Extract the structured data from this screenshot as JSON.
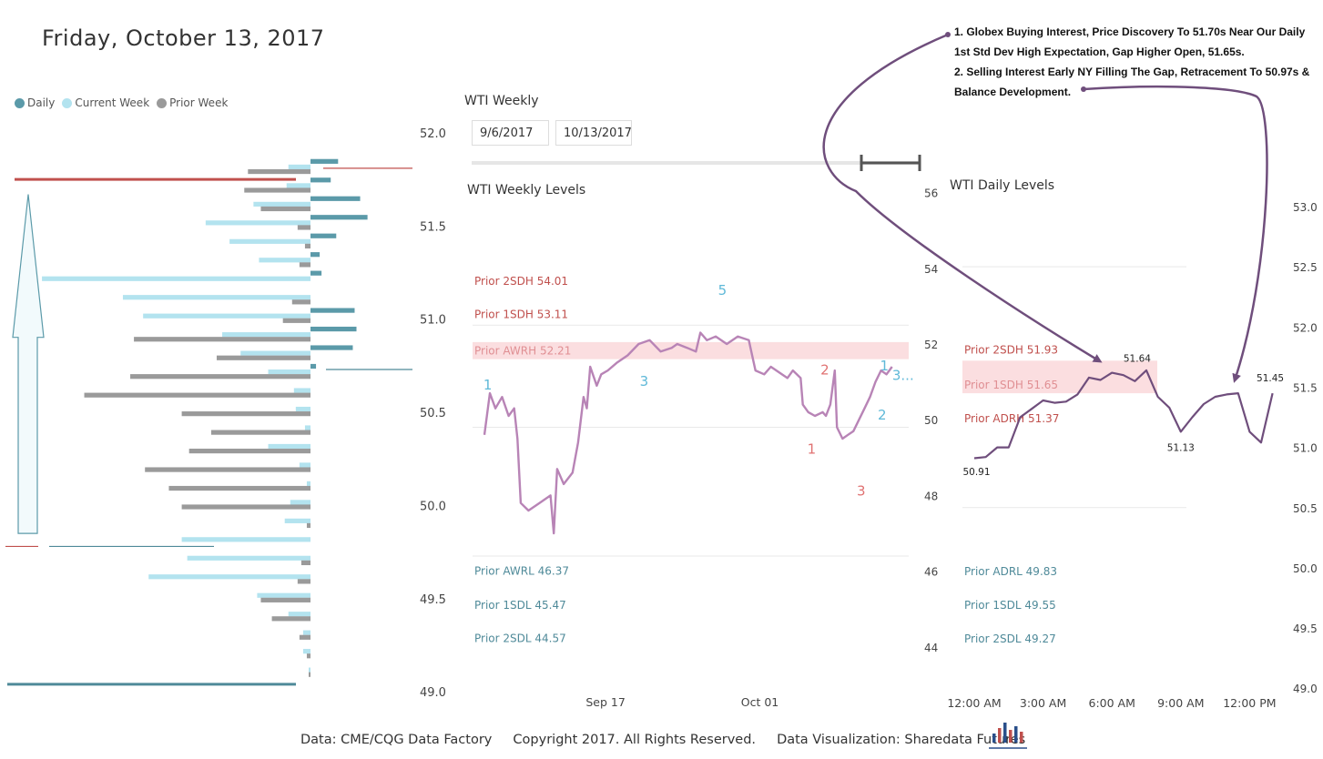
{
  "page": {
    "title": "Friday, October 13, 2017",
    "footer": "Data: CME/CQG Data Factory     Copyright 2017. All Rights Reserved.     Data Visualization: Sharedata Futures",
    "annotation": [
      "1. Globex Buying Interest, Price Discovery To 51.70s Near Our Daily 1st Std Dev High Expectation, Gap Higher Open, 51.65s.",
      "2. Selling Interest Early NY Filling The Gap, Retracement To 50.97s & Balance Development."
    ]
  },
  "legend": [
    {
      "label": "Daily",
      "color": "#5b9aa9"
    },
    {
      "label": "Current Week",
      "color": "#b3e3ef"
    },
    {
      "label": "Prior Week",
      "color": "#9a9a9a"
    }
  ],
  "weekly_filter": {
    "title": "WTI Weekly",
    "start": "9/6/2017",
    "end": "10/13/2017"
  },
  "colors": {
    "daily": "#5b9aa9",
    "current_week": "#b3e3ef",
    "prior_week": "#9a9a9a",
    "price_line": "#b884b6",
    "daily_line": "#6f4e7c",
    "red": "#c0504d",
    "blue": "#4f8a99",
    "band": "#f8c8cb"
  },
  "chart_data": [
    {
      "type": "bar",
      "name": "volume-profile",
      "orientation": "horizontal",
      "ylim": [
        49.0,
        52.0
      ],
      "yticks": [
        "52.0",
        "51.5",
        "51.0",
        "50.5",
        "50.0",
        "49.5",
        "49.0"
      ],
      "price_step": 0.1,
      "price_levels": [
        51.8,
        51.7,
        51.6,
        51.5,
        51.4,
        51.3,
        51.2,
        51.1,
        51.0,
        50.9,
        50.8,
        50.7,
        50.6,
        50.5,
        50.4,
        50.3,
        50.2,
        50.1,
        50.0,
        49.9,
        49.8,
        49.7,
        49.6,
        49.5,
        49.4,
        49.3,
        49.2,
        49.1
      ],
      "series": [
        {
          "name": "Daily",
          "values": [
            1.5,
            1.1,
            2.7,
            3.1,
            1.4,
            0.5,
            0.6,
            0,
            2.4,
            2.5,
            2.3,
            0.3,
            0,
            0,
            0,
            0,
            0,
            0,
            0,
            0,
            0,
            0,
            0,
            0,
            0,
            0,
            0,
            0
          ]
        },
        {
          "name": "Current Week",
          "values": [
            1.2,
            1.3,
            3.1,
            5.7,
            4.4,
            2.8,
            14.6,
            10.2,
            9.1,
            4.8,
            3.8,
            2.3,
            0.9,
            0.8,
            0.3,
            2.3,
            0.6,
            0.2,
            1.1,
            1.4,
            7.0,
            6.7,
            8.8,
            2.9,
            1.2,
            0.4,
            0.4,
            0.1
          ]
        },
        {
          "name": "Prior Week",
          "values": [
            3.4,
            3.6,
            2.7,
            0.7,
            0.3,
            0.6,
            0,
            1.0,
            1.5,
            9.6,
            5.1,
            9.8,
            12.3,
            7.0,
            5.4,
            6.6,
            9.0,
            7.7,
            7.0,
            0.2,
            0,
            0.5,
            0.7,
            2.7,
            2.1,
            0.6,
            0.2,
            0.1
          ]
        }
      ],
      "reference_lines": [
        {
          "price": 51.81,
          "color": "red"
        },
        {
          "price": 51.75,
          "color": "red"
        },
        {
          "price": 50.73,
          "color": "blue"
        },
        {
          "price": 49.78,
          "color": "red"
        },
        {
          "price": 49.78,
          "color": "blue"
        },
        {
          "price": 49.04,
          "color": "blue"
        }
      ],
      "arrow": {
        "direction": "up",
        "from": 49.85,
        "to": 51.67
      }
    },
    {
      "type": "line",
      "name": "wti-weekly-levels",
      "title": "WTI Weekly Levels",
      "ylim": [
        44,
        57
      ],
      "yticks": [
        44,
        46,
        48,
        50,
        52,
        54,
        56
      ],
      "xlim": [
        0,
        37
      ],
      "xticks": [
        {
          "label": "Sep 17",
          "x": 11
        },
        {
          "label": "Oct 01",
          "x": 25
        }
      ],
      "band": {
        "from": 51.6,
        "to": 52.05
      },
      "levels": [
        {
          "label": "Prior 2SDH 54.01",
          "color": "red",
          "y": 53.66
        },
        {
          "label": "Prior 1SDH 53.11",
          "color": "red",
          "y": 52.78
        },
        {
          "label": "Prior AWRH 52.21",
          "color": "band",
          "y": 51.82
        },
        {
          "label": "Prior AWRL 46.37",
          "color": "blue",
          "y": 46.0
        },
        {
          "label": "Prior 1SDL 45.47",
          "color": "blue",
          "y": 45.1
        },
        {
          "label": "Prior 2SDL 44.57",
          "color": "blue",
          "y": 44.22
        }
      ],
      "gridlines": [
        52.5,
        49.8,
        46.4
      ],
      "points": [
        [
          0.0,
          49.6
        ],
        [
          0.5,
          50.7
        ],
        [
          1.0,
          50.3
        ],
        [
          1.6,
          50.6
        ],
        [
          2.2,
          50.1
        ],
        [
          2.7,
          50.3
        ],
        [
          3.0,
          49.5
        ],
        [
          3.3,
          47.8
        ],
        [
          4.0,
          47.6
        ],
        [
          5.0,
          47.8
        ],
        [
          6.0,
          48.0
        ],
        [
          6.3,
          47.0
        ],
        [
          6.6,
          48.7
        ],
        [
          7.2,
          48.3
        ],
        [
          8.0,
          48.6
        ],
        [
          8.5,
          49.4
        ],
        [
          9.0,
          50.6
        ],
        [
          9.3,
          50.3
        ],
        [
          9.6,
          51.4
        ],
        [
          10.2,
          50.9
        ],
        [
          10.6,
          51.2
        ],
        [
          11.2,
          51.3
        ],
        [
          12.0,
          51.5
        ],
        [
          13.0,
          51.7
        ],
        [
          14.0,
          52.0
        ],
        [
          15.0,
          52.1
        ],
        [
          16.0,
          51.8
        ],
        [
          17.0,
          51.9
        ],
        [
          17.5,
          52.0
        ],
        [
          18.4,
          51.9
        ],
        [
          19.2,
          51.8
        ],
        [
          19.6,
          52.3
        ],
        [
          20.2,
          52.1
        ],
        [
          21.0,
          52.2
        ],
        [
          22.0,
          52.0
        ],
        [
          23.0,
          52.2
        ],
        [
          24.0,
          52.1
        ],
        [
          24.6,
          51.3
        ],
        [
          25.4,
          51.2
        ],
        [
          26.0,
          51.4
        ],
        [
          27.0,
          51.2
        ],
        [
          27.5,
          51.1
        ],
        [
          28.0,
          51.3
        ],
        [
          28.7,
          51.1
        ],
        [
          28.9,
          50.4
        ],
        [
          29.4,
          50.2
        ],
        [
          30.0,
          50.1
        ],
        [
          30.7,
          50.2
        ],
        [
          31.0,
          50.1
        ],
        [
          31.4,
          50.4
        ],
        [
          31.8,
          51.3
        ],
        [
          32.0,
          49.8
        ],
        [
          32.5,
          49.5
        ],
        [
          33.0,
          49.6
        ],
        [
          33.5,
          49.7
        ],
        [
          34.0,
          50.0
        ],
        [
          34.5,
          50.3
        ],
        [
          35.0,
          50.6
        ],
        [
          35.5,
          51.0
        ],
        [
          36.0,
          51.3
        ],
        [
          36.5,
          51.2
        ],
        [
          37.0,
          51.4
        ]
      ],
      "wave_labels": [
        {
          "text": "1",
          "x": 0.3,
          "y": 50.8,
          "color": "blue"
        },
        {
          "text": "3",
          "x": 14.5,
          "y": 50.9,
          "color": "blue"
        },
        {
          "text": "5",
          "x": 21.6,
          "y": 53.3,
          "color": "blue"
        },
        {
          "text": "1",
          "x": 29.7,
          "y": 49.1,
          "color": "red"
        },
        {
          "text": "2",
          "x": 30.9,
          "y": 51.2,
          "color": "red"
        },
        {
          "text": "3",
          "x": 34.2,
          "y": 48.0,
          "color": "red"
        },
        {
          "text": "1",
          "x": 36.3,
          "y": 51.3,
          "color": "blue"
        },
        {
          "text": "2",
          "x": 36.1,
          "y": 50.0,
          "color": "blue"
        },
        {
          "text": "3...",
          "x": 38.0,
          "y": 51.05,
          "color": "blue"
        }
      ]
    },
    {
      "type": "line",
      "name": "wti-daily-levels",
      "title": "WTI Daily Levels",
      "ylim": [
        49.0,
        53.0
      ],
      "yticks": [
        "53.0",
        "52.5",
        "52.0",
        "51.5",
        "51.0",
        "50.5",
        "50.0",
        "49.5",
        "49.0"
      ],
      "xlim": [
        0,
        13.6
      ],
      "xticks": [
        {
          "label": "12:00 AM",
          "x": 0
        },
        {
          "label": "3:00 AM",
          "x": 3
        },
        {
          "label": "6:00 AM",
          "x": 6
        },
        {
          "label": "9:00 AM",
          "x": 9
        },
        {
          "label": "12:00 PM",
          "x": 12
        }
      ],
      "band": {
        "from": 51.45,
        "to": 51.72
      },
      "levels": [
        {
          "label": "Prior 2SDH 51.93",
          "color": "red",
          "y": 51.81
        },
        {
          "label": "Prior 1SDH 51.65",
          "color": "band",
          "y": 51.52
        },
        {
          "label": "Prior ADRH 51.37",
          "color": "red",
          "y": 51.24
        },
        {
          "label": "Prior ADRL 49.83",
          "color": "blue",
          "y": 49.97
        },
        {
          "label": "Prior 1SDL 49.55",
          "color": "blue",
          "y": 49.69
        },
        {
          "label": "Prior 2SDL 49.27",
          "color": "blue",
          "y": 49.41
        }
      ],
      "gridlines": [
        52.5,
        50.5
      ],
      "points": [
        [
          0.0,
          50.91
        ],
        [
          0.5,
          50.92
        ],
        [
          1.0,
          51.0
        ],
        [
          1.5,
          51.0
        ],
        [
          2.0,
          51.25
        ],
        [
          2.5,
          51.32
        ],
        [
          3.0,
          51.39
        ],
        [
          3.5,
          51.37
        ],
        [
          4.0,
          51.38
        ],
        [
          4.5,
          51.44
        ],
        [
          5.0,
          51.58
        ],
        [
          5.5,
          51.56
        ],
        [
          6.0,
          51.62
        ],
        [
          6.5,
          51.6
        ],
        [
          7.0,
          51.55
        ],
        [
          7.5,
          51.64
        ],
        [
          8.0,
          51.42
        ],
        [
          8.5,
          51.33
        ],
        [
          9.0,
          51.13
        ],
        [
          9.5,
          51.25
        ],
        [
          10.0,
          51.36
        ],
        [
          10.5,
          51.42
        ],
        [
          11.0,
          51.44
        ],
        [
          11.5,
          51.45
        ],
        [
          12.0,
          51.13
        ],
        [
          12.5,
          51.04
        ],
        [
          13.0,
          51.45
        ]
      ],
      "point_labels": [
        {
          "text": "50.91",
          "x": 0.1,
          "y": 50.77
        },
        {
          "text": "51.64",
          "x": 7.1,
          "y": 51.71
        },
        {
          "text": "51.13",
          "x": 9.0,
          "y": 50.97
        },
        {
          "text": "51.45",
          "x": 12.9,
          "y": 51.55
        }
      ]
    }
  ]
}
